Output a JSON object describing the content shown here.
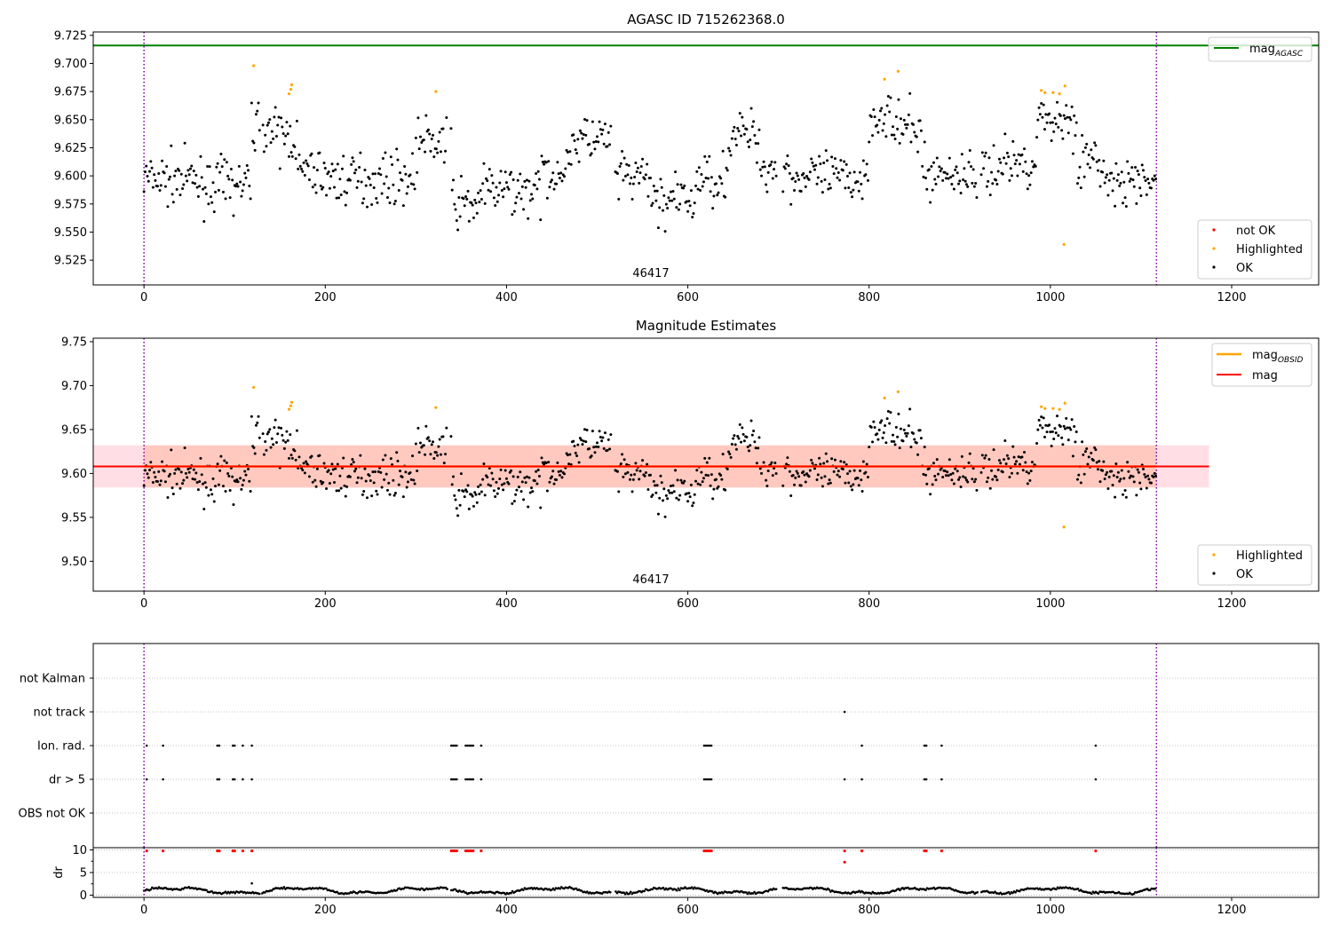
{
  "chart_data": [
    {
      "panel": "top",
      "type": "scatter",
      "title": "AGASC ID 715262368.0",
      "obsid_label": "46417",
      "xlim": [
        -56,
        1296
      ],
      "ylim": [
        9.503,
        9.728
      ],
      "x_ticks": [
        "0",
        "200",
        "400",
        "600",
        "800",
        "1000",
        "1200"
      ],
      "x_tick_values": [
        0,
        200,
        400,
        600,
        800,
        1000,
        1200
      ],
      "y_ticks": [
        "9.525",
        "9.550",
        "9.575",
        "9.600",
        "9.625",
        "9.650",
        "9.675",
        "9.700",
        "9.725"
      ],
      "y_tick_values": [
        9.525,
        9.55,
        9.575,
        9.6,
        9.625,
        9.65,
        9.675,
        9.7,
        9.725
      ],
      "mag_agasc": 9.716,
      "obs_bounds": [
        0,
        1117
      ],
      "legend_upper": {
        "main": "mag",
        "sub": "AGASC",
        "color": "#008000",
        "placement": "upper right"
      },
      "legend_lower": [
        {
          "label": "not OK",
          "color": "#ff0000"
        },
        {
          "label": "Highlighted",
          "color": "#ffa500"
        },
        {
          "label": "OK",
          "color": "#000000"
        }
      ],
      "legend_lower_placement": "lower right",
      "highlighted_points": [
        {
          "x": 121,
          "y": 9.698
        },
        {
          "x": 160,
          "y": 9.673
        },
        {
          "x": 162,
          "y": 9.677
        },
        {
          "x": 163,
          "y": 9.681
        },
        {
          "x": 322,
          "y": 9.675
        },
        {
          "x": 817,
          "y": 9.686
        },
        {
          "x": 832,
          "y": 9.693
        },
        {
          "x": 990,
          "y": 9.676
        },
        {
          "x": 994,
          "y": 9.674
        },
        {
          "x": 1003,
          "y": 9.674
        },
        {
          "x": 1010,
          "y": 9.673
        },
        {
          "x": 1016,
          "y": 9.68
        },
        {
          "x": 1015,
          "y": 9.539
        }
      ]
    },
    {
      "panel": "middle",
      "type": "scatter",
      "title": "Magnitude Estimates",
      "obsid_label": "46417",
      "xlim": [
        -56,
        1296
      ],
      "ylim": [
        9.466,
        9.754
      ],
      "x_ticks": [
        "0",
        "200",
        "400",
        "600",
        "800",
        "1000",
        "1200"
      ],
      "x_tick_values": [
        0,
        200,
        400,
        600,
        800,
        1000,
        1200
      ],
      "y_ticks": [
        "9.50",
        "9.55",
        "9.60",
        "9.65",
        "9.70",
        "9.75"
      ],
      "y_tick_values": [
        9.5,
        9.55,
        9.6,
        9.65,
        9.7,
        9.75
      ],
      "mag": 9.608,
      "mag_band": [
        9.584,
        9.632
      ],
      "mag_obsid": 9.608,
      "mag_obsid_band": [
        9.584,
        9.632
      ],
      "obs_bounds": [
        0,
        1117
      ],
      "legend_upper": [
        {
          "main": "mag",
          "sub": "OBSID",
          "color": "#ffa500"
        },
        {
          "main": "mag",
          "sub": "",
          "color": "#ff0000"
        }
      ],
      "legend_lower": [
        {
          "label": "Highlighted",
          "color": "#ffa500"
        },
        {
          "label": "OK",
          "color": "#000000"
        }
      ],
      "legend_lower_placement": "lower right"
    },
    {
      "panel": "flags",
      "type": "scatter",
      "xlim": [
        -56,
        1296
      ],
      "x_ticks": [
        "0",
        "200",
        "400",
        "600",
        "800",
        "1000",
        "1200"
      ],
      "x_tick_values": [
        0,
        200,
        400,
        600,
        800,
        1000,
        1200
      ],
      "categories": [
        "not Kalman",
        "not track",
        "Ion. rad.",
        "dr > 5",
        "OBS not OK"
      ],
      "flag_points": {
        "not track": [
          773
        ],
        "Ion. rad.": [
          3,
          21,
          81,
          83,
          98,
          100,
          109,
          119,
          339,
          341,
          343,
          345,
          355,
          357,
          359,
          361,
          363,
          372,
          618,
          620,
          622,
          624,
          626,
          792,
          861,
          863,
          880,
          1050
        ],
        "dr > 5": [
          3,
          21,
          81,
          83,
          98,
          100,
          109,
          119,
          339,
          341,
          343,
          345,
          355,
          357,
          359,
          361,
          363,
          372,
          618,
          620,
          622,
          624,
          626,
          773,
          792,
          861,
          863,
          880,
          1050
        ]
      },
      "obs_bounds": [
        0,
        1117
      ]
    },
    {
      "panel": "dr",
      "type": "scatter",
      "ylabel": "dr",
      "xlim": [
        -56,
        1296
      ],
      "ylim": [
        -0.5,
        10.5
      ],
      "x_ticks": [
        "0",
        "200",
        "400",
        "600",
        "800",
        "1000",
        "1200"
      ],
      "x_tick_values": [
        0,
        200,
        400,
        600,
        800,
        1000,
        1200
      ],
      "y_ticks": [
        "0",
        "5",
        "10"
      ],
      "y_tick_values": [
        0,
        5,
        10
      ],
      "dr_high_points": [
        {
          "x": 3,
          "y": 9.8
        },
        {
          "x": 21,
          "y": 9.8
        },
        {
          "x": 81,
          "y": 9.8
        },
        {
          "x": 83,
          "y": 9.8
        },
        {
          "x": 98,
          "y": 9.8
        },
        {
          "x": 100,
          "y": 9.8
        },
        {
          "x": 109,
          "y": 9.8
        },
        {
          "x": 119,
          "y": 9.8
        },
        {
          "x": 339,
          "y": 9.8
        },
        {
          "x": 341,
          "y": 9.8
        },
        {
          "x": 343,
          "y": 9.8
        },
        {
          "x": 345,
          "y": 9.8
        },
        {
          "x": 355,
          "y": 9.8
        },
        {
          "x": 357,
          "y": 9.8
        },
        {
          "x": 359,
          "y": 9.8
        },
        {
          "x": 361,
          "y": 9.8
        },
        {
          "x": 363,
          "y": 9.8
        },
        {
          "x": 372,
          "y": 9.8
        },
        {
          "x": 618,
          "y": 9.8
        },
        {
          "x": 620,
          "y": 9.8
        },
        {
          "x": 622,
          "y": 9.8
        },
        {
          "x": 624,
          "y": 9.8
        },
        {
          "x": 626,
          "y": 9.8
        },
        {
          "x": 773,
          "y": 9.8
        },
        {
          "x": 773,
          "y": 7.3
        },
        {
          "x": 792,
          "y": 9.8
        },
        {
          "x": 861,
          "y": 9.8
        },
        {
          "x": 863,
          "y": 9.8
        },
        {
          "x": 880,
          "y": 9.8
        },
        {
          "x": 1050,
          "y": 9.8
        }
      ],
      "obs_bounds": [
        0,
        1117
      ]
    }
  ]
}
